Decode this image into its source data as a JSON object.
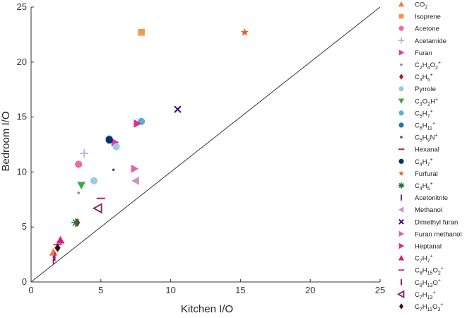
{
  "chart_data": {
    "type": "scatter",
    "xlabel": "Kitchen I/O",
    "ylabel": "Bedroom I/O",
    "xlim": [
      0,
      25
    ],
    "ylim": [
      0,
      25
    ],
    "xticks": [
      0,
      5,
      10,
      15,
      20,
      25
    ],
    "yticks": [
      0,
      5,
      10,
      15,
      20,
      25
    ],
    "grid": false,
    "reference_line": "y = x",
    "legend_position": "right",
    "series": [
      {
        "name": "CO2",
        "sub": "2",
        "sup": "",
        "marker": "triangle-up",
        "color": "#f07c50",
        "points": [
          [
            1.6,
            2.7
          ]
        ]
      },
      {
        "name": "Isoprene",
        "sub": "",
        "sup": "",
        "marker": "square",
        "color": "#f39a4a",
        "points": [
          [
            7.9,
            22.7
          ]
        ]
      },
      {
        "name": "Acetone",
        "sub": "",
        "sup": "",
        "marker": "circle",
        "color": "#ef6aa0",
        "points": [
          [
            3.4,
            10.7
          ]
        ]
      },
      {
        "name": "Acetamide",
        "sub": "",
        "sup": "",
        "marker": "plus",
        "color": "#b9a7d9",
        "points": [
          [
            3.8,
            11.7
          ]
        ]
      },
      {
        "name": "Furan",
        "sub": "",
        "sup": "",
        "marker": "triangle-right",
        "color": "#d63fa3",
        "points": [
          [
            6.0,
            12.7
          ]
        ]
      },
      {
        "name": "C2H4O2+",
        "sub": "",
        "sup": "",
        "marker": "dot",
        "color": "#8b7fc6",
        "points": [
          [
            3.4,
            8.1
          ]
        ]
      },
      {
        "name": "C3H5+",
        "sub": "",
        "sup": "",
        "marker": "diamond",
        "color": "#9e1c23",
        "points": [
          [
            3.3,
            5.4
          ]
        ]
      },
      {
        "name": "Pyrrole",
        "sub": "",
        "sup": "",
        "marker": "circle",
        "color": "#9ecae1",
        "points": [
          [
            4.5,
            9.2
          ],
          [
            6.1,
            12.3
          ]
        ]
      },
      {
        "name": "C3O2H+",
        "sub": "",
        "sup": "",
        "marker": "triangle-down",
        "color": "#41a84e",
        "points": [
          [
            3.6,
            8.8
          ]
        ]
      },
      {
        "name": "C5H7+",
        "sub": "",
        "sup": "",
        "marker": "circle",
        "color": "#5aaed6",
        "points": [
          [
            7.9,
            14.6
          ]
        ]
      },
      {
        "name": "C6H11+",
        "sub": "",
        "sup": "",
        "marker": "circle",
        "color": "#2171b5",
        "points": [
          [
            5.6,
            13.0
          ]
        ]
      },
      {
        "name": "C5H9N+",
        "sub": "",
        "sup": "",
        "marker": "dot",
        "color": "#5a3fa0",
        "points": [
          [
            5.9,
            10.2
          ]
        ]
      },
      {
        "name": "Hexanal",
        "sub": "",
        "sup": "",
        "marker": "hline",
        "color": "#c2185b",
        "points": [
          [
            5.0,
            7.6
          ]
        ]
      },
      {
        "name": "C4H7+",
        "sub": "",
        "sup": "",
        "marker": "circle",
        "color": "#08306b",
        "points": [
          [
            5.6,
            12.9
          ]
        ]
      },
      {
        "name": "Furfural",
        "sub": "",
        "sup": "",
        "marker": "star",
        "color": "#e0662a",
        "points": [
          [
            15.3,
            22.7
          ]
        ]
      },
      {
        "name": "C4H5+",
        "sub": "",
        "sup": "",
        "marker": "asterisk",
        "color": "#1b7837",
        "points": [
          [
            3.2,
            5.4
          ]
        ]
      },
      {
        "name": "Acetonitrile",
        "sub": "",
        "sup": "",
        "marker": "vline",
        "color": "#7b2d8b",
        "points": [
          [
            1.6,
            2.0
          ]
        ]
      },
      {
        "name": "Methanol",
        "sub": "",
        "sup": "",
        "marker": "triangle-left",
        "color": "#c994c7",
        "points": [
          [
            7.5,
            9.2
          ]
        ]
      },
      {
        "name": "Dimethyl furan",
        "sub": "",
        "sup": "",
        "marker": "x",
        "color": "#3f007d",
        "points": [
          [
            10.5,
            15.7
          ]
        ]
      },
      {
        "name": "Furan methanol",
        "sub": "",
        "sup": "",
        "marker": "triangle-right",
        "color": "#df65b0",
        "points": [
          [
            7.4,
            10.3
          ]
        ]
      },
      {
        "name": "Heptanal",
        "sub": "",
        "sup": "",
        "marker": "triangle-right",
        "color": "#e7298a",
        "points": [
          [
            7.6,
            14.4
          ]
        ]
      },
      {
        "name": "C7H7+",
        "sub": "",
        "sup": "",
        "marker": "triangle-up",
        "color": "#dd1c77",
        "points": [
          [
            2.1,
            3.8
          ]
        ]
      },
      {
        "name": "C8H15O2+",
        "sub": "",
        "sup": "",
        "marker": "hline",
        "color": "#d6337a",
        "points": [
          [
            1.9,
            3.4
          ]
        ]
      },
      {
        "name": "C8H13O+",
        "sub": "",
        "sup": "",
        "marker": "vline",
        "color": "#b3115a",
        "points": [
          [
            1.7,
            2.3
          ]
        ]
      },
      {
        "name": "C7H13+",
        "sub": "",
        "sup": "",
        "marker": "triangle-left-open",
        "color": "#8c2d6a",
        "points": [
          [
            4.8,
            6.7
          ]
        ]
      },
      {
        "name": "C7H11O3+",
        "sub": "",
        "sup": "",
        "marker": "diamond",
        "color": "#3d0a12",
        "points": [
          [
            1.9,
            3.1
          ]
        ]
      }
    ]
  },
  "legend_labels": [
    {
      "base": "CO",
      "parts": [
        [
          "2",
          "sub"
        ]
      ]
    },
    {
      "base": "Isoprene",
      "parts": []
    },
    {
      "base": "Acetone",
      "parts": []
    },
    {
      "base": "Acetamide",
      "parts": []
    },
    {
      "base": "Furan",
      "parts": []
    },
    {
      "base": "C",
      "parts": [
        [
          "2",
          "sub"
        ],
        [
          "H",
          ""
        ],
        [
          "4",
          "sub"
        ],
        [
          "O",
          ""
        ],
        [
          "2",
          "sub"
        ],
        [
          "+",
          "sup"
        ]
      ]
    },
    {
      "base": "C",
      "parts": [
        [
          "3",
          "sub"
        ],
        [
          "H",
          ""
        ],
        [
          "5",
          "sub"
        ],
        [
          "+",
          "sup"
        ]
      ]
    },
    {
      "base": "Pyrrole",
      "parts": []
    },
    {
      "base": "C",
      "parts": [
        [
          "3",
          "sub"
        ],
        [
          "O",
          ""
        ],
        [
          "2",
          "sub"
        ],
        [
          "H",
          ""
        ],
        [
          "+",
          "sup"
        ]
      ]
    },
    {
      "base": "C",
      "parts": [
        [
          "5",
          "sub"
        ],
        [
          "H",
          ""
        ],
        [
          "7",
          "sub"
        ],
        [
          "+",
          "sup"
        ]
      ]
    },
    {
      "base": "C",
      "parts": [
        [
          "6",
          "sub"
        ],
        [
          "H",
          ""
        ],
        [
          "11",
          "sub"
        ],
        [
          "+",
          "sup"
        ]
      ]
    },
    {
      "base": "C",
      "parts": [
        [
          "5",
          "sub"
        ],
        [
          "H",
          ""
        ],
        [
          "9",
          "sub"
        ],
        [
          "N",
          ""
        ],
        [
          "+",
          "sup"
        ]
      ]
    },
    {
      "base": "Hexanal",
      "parts": []
    },
    {
      "base": "C",
      "parts": [
        [
          "4",
          "sub"
        ],
        [
          "H",
          ""
        ],
        [
          "7",
          "sub"
        ],
        [
          "+",
          "sup"
        ]
      ]
    },
    {
      "base": "Furfural",
      "parts": []
    },
    {
      "base": "C",
      "parts": [
        [
          "4",
          "sub"
        ],
        [
          "H",
          ""
        ],
        [
          "5",
          "sub"
        ],
        [
          "+",
          "sup"
        ]
      ]
    },
    {
      "base": "Acetonitrile",
      "parts": []
    },
    {
      "base": "Methanol",
      "parts": []
    },
    {
      "base": "Dimethyl furan",
      "parts": []
    },
    {
      "base": "Furan methanol",
      "parts": []
    },
    {
      "base": "Heptanal",
      "parts": []
    },
    {
      "base": "C",
      "parts": [
        [
          "7",
          "sub"
        ],
        [
          "H",
          ""
        ],
        [
          "7",
          "sub"
        ],
        [
          "+",
          "sup"
        ]
      ]
    },
    {
      "base": "C",
      "parts": [
        [
          "8",
          "sub"
        ],
        [
          "H",
          ""
        ],
        [
          "15",
          "sub"
        ],
        [
          "O",
          ""
        ],
        [
          "2",
          "sub"
        ],
        [
          "+",
          "sup"
        ]
      ]
    },
    {
      "base": "C",
      "parts": [
        [
          "8",
          "sub"
        ],
        [
          "H",
          ""
        ],
        [
          "13",
          "sub"
        ],
        [
          "O",
          ""
        ],
        [
          "+",
          "sup"
        ]
      ]
    },
    {
      "base": "C",
      "parts": [
        [
          "7",
          "sub"
        ],
        [
          "H",
          ""
        ],
        [
          "13",
          "sub"
        ],
        [
          "+",
          "sup"
        ]
      ]
    },
    {
      "base": "C",
      "parts": [
        [
          "7",
          "sub"
        ],
        [
          "H",
          ""
        ],
        [
          "11",
          "sub"
        ],
        [
          "O",
          ""
        ],
        [
          "3",
          "sub"
        ],
        [
          "+",
          "sup"
        ]
      ]
    }
  ]
}
